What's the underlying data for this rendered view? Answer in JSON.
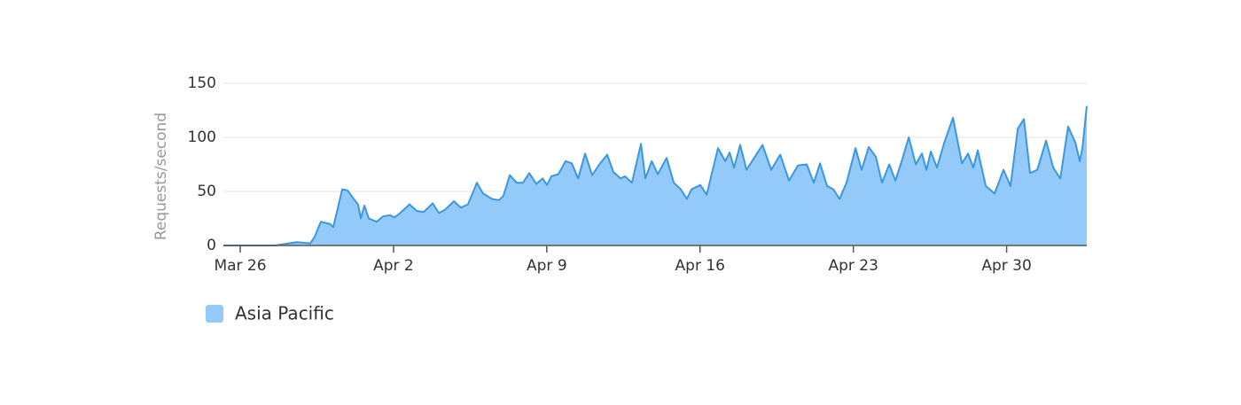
{
  "chart_data": {
    "type": "area",
    "y_label": "Requests/second",
    "x": [
      -0.77,
      1.58,
      2.59,
      3.2,
      3.4,
      3.68,
      4.09,
      4.25,
      4.66,
      4.9,
      5.22,
      5.38,
      5.51,
      5.67,
      5.87,
      6.23,
      6.52,
      6.84,
      7.04,
      7.25,
      7.73,
      8.06,
      8.38,
      8.79,
      9.07,
      9.35,
      9.76,
      10.08,
      10.4,
      10.81,
      11.09,
      11.5,
      11.82,
      12.02,
      12.31,
      12.63,
      12.91,
      13.2,
      13.52,
      13.81,
      14.01,
      14.21,
      14.53,
      14.86,
      15.14,
      15.43,
      15.75,
      16.07,
      16.4,
      16.76,
      17.04,
      17.37,
      17.57,
      17.89,
      18.3,
      18.5,
      18.79,
      19.07,
      19.47,
      19.8,
      20.12,
      20.4,
      20.61,
      21.01,
      21.3,
      21.82,
      22.15,
      22.35,
      22.55,
      22.83,
      23.12,
      23.44,
      23.85,
      24.25,
      24.66,
      25.06,
      25.47,
      25.87,
      26.19,
      26.48,
      26.8,
      27.09,
      27.37,
      27.69,
      28.1,
      28.38,
      28.7,
      29.03,
      29.31,
      29.64,
      29.92,
      30.24,
      30.53,
      30.85,
      31.13,
      31.34,
      31.54,
      31.82,
      32.15,
      32.55,
      32.96,
      33.24,
      33.48,
      33.68,
      34.05,
      34.45,
      34.86,
      35.18,
      35.51,
      35.79,
      36.07,
      36.4,
      36.8,
      37.13,
      37.45,
      37.81,
      38.14,
      38.34,
      38.46,
      38.66
    ],
    "series": [
      {
        "name": "Asia Pacific",
        "color": "#3a97e0",
        "fill": "#94cafa",
        "values": [
          0,
          0,
          3,
          2,
          8,
          22,
          20,
          17,
          52,
          51,
          42,
          38,
          25,
          37,
          25,
          22,
          27,
          28,
          26,
          29,
          38,
          32,
          31,
          39,
          30,
          33,
          41,
          35,
          38,
          58,
          48,
          43,
          42,
          46,
          65,
          58,
          58,
          67,
          57,
          62,
          56,
          64,
          66,
          78,
          76,
          62,
          85,
          65,
          75,
          84,
          68,
          62,
          64,
          58,
          94,
          62,
          78,
          66,
          81,
          58,
          52,
          43,
          52,
          56,
          47,
          90,
          78,
          86,
          72,
          93,
          70,
          80,
          93,
          70,
          84,
          60,
          74,
          75,
          58,
          76,
          55,
          52,
          43,
          58,
          90,
          70,
          91,
          82,
          58,
          75,
          60,
          80,
          100,
          75,
          85,
          70,
          87,
          72,
          95,
          118,
          76,
          85,
          72,
          88,
          55,
          48,
          70,
          55,
          108,
          117,
          67,
          70,
          97,
          72,
          62,
          110,
          95,
          78,
          90,
          129
        ]
      }
    ],
    "xlim": [
      -0.77,
      38.66
    ],
    "xticks": [
      {
        "value": 0,
        "label": "Mar 26"
      },
      {
        "value": 7,
        "label": "Apr 2"
      },
      {
        "value": 14,
        "label": "Apr 9"
      },
      {
        "value": 21,
        "label": "Apr 16"
      },
      {
        "value": 28,
        "label": "Apr 23"
      },
      {
        "value": 35,
        "label": "Apr 30"
      }
    ],
    "ylim": [
      0,
      150
    ],
    "yticks": [
      0,
      50,
      100,
      150
    ],
    "grid": true
  }
}
